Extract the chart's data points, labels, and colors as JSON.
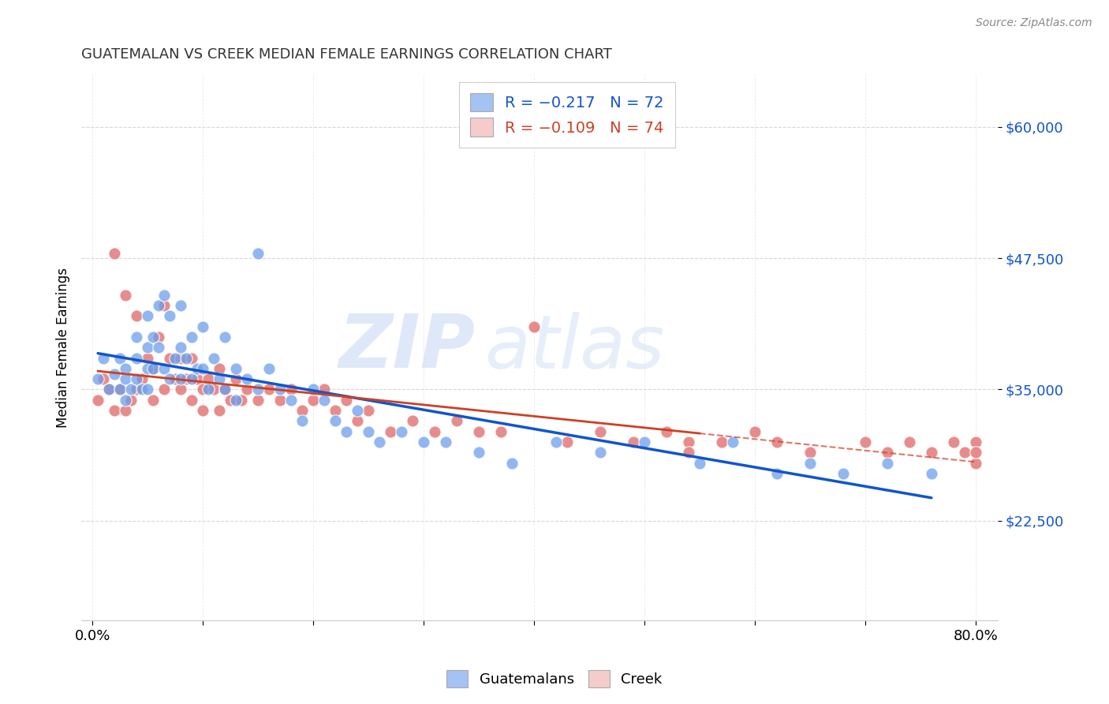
{
  "title": "GUATEMALAN VS CREEK MEDIAN FEMALE EARNINGS CORRELATION CHART",
  "source": "Source: ZipAtlas.com",
  "ylabel": "Median Female Earnings",
  "yticks": [
    22500,
    35000,
    47500,
    60000
  ],
  "ytick_labels": [
    "$22,500",
    "$35,000",
    "$47,500",
    "$60,000"
  ],
  "ylim": [
    13000,
    65000
  ],
  "xlim": [
    -0.01,
    0.82
  ],
  "blue_color": "#a4c2f4",
  "pink_color": "#f4cccc",
  "blue_marker_color": "#6d9eeb",
  "pink_marker_color": "#e06666",
  "blue_line_color": "#1155cc",
  "pink_line_color": "#cc4125",
  "guatemalans_x": [
    0.005,
    0.01,
    0.015,
    0.02,
    0.025,
    0.025,
    0.03,
    0.03,
    0.03,
    0.035,
    0.04,
    0.04,
    0.04,
    0.045,
    0.05,
    0.05,
    0.05,
    0.05,
    0.055,
    0.055,
    0.06,
    0.06,
    0.065,
    0.065,
    0.07,
    0.07,
    0.075,
    0.08,
    0.08,
    0.08,
    0.085,
    0.09,
    0.09,
    0.095,
    0.1,
    0.1,
    0.105,
    0.11,
    0.115,
    0.12,
    0.12,
    0.13,
    0.13,
    0.14,
    0.15,
    0.15,
    0.16,
    0.17,
    0.18,
    0.19,
    0.2,
    0.21,
    0.22,
    0.23,
    0.24,
    0.25,
    0.26,
    0.28,
    0.3,
    0.32,
    0.35,
    0.38,
    0.42,
    0.46,
    0.5,
    0.55,
    0.58,
    0.62,
    0.65,
    0.68,
    0.72,
    0.76
  ],
  "guatemalans_y": [
    36000,
    38000,
    35000,
    36500,
    35000,
    38000,
    37000,
    36000,
    34000,
    35000,
    40000,
    38000,
    36000,
    35000,
    42000,
    39000,
    37000,
    35000,
    40000,
    37000,
    43000,
    39000,
    44000,
    37000,
    42000,
    36000,
    38000,
    43000,
    39000,
    36000,
    38000,
    40000,
    36000,
    37000,
    41000,
    37000,
    35000,
    38000,
    36000,
    40000,
    35000,
    37000,
    34000,
    36000,
    48000,
    35000,
    37000,
    35000,
    34000,
    32000,
    35000,
    34000,
    32000,
    31000,
    33000,
    31000,
    30000,
    31000,
    30000,
    30000,
    29000,
    28000,
    30000,
    29000,
    30000,
    28000,
    30000,
    27000,
    28000,
    27000,
    28000,
    27000
  ],
  "creek_x": [
    0.005,
    0.01,
    0.015,
    0.02,
    0.02,
    0.025,
    0.03,
    0.03,
    0.035,
    0.04,
    0.04,
    0.045,
    0.05,
    0.055,
    0.055,
    0.06,
    0.065,
    0.065,
    0.07,
    0.075,
    0.08,
    0.08,
    0.085,
    0.09,
    0.09,
    0.095,
    0.1,
    0.1,
    0.105,
    0.11,
    0.115,
    0.115,
    0.12,
    0.125,
    0.13,
    0.135,
    0.14,
    0.15,
    0.16,
    0.17,
    0.18,
    0.19,
    0.2,
    0.21,
    0.22,
    0.23,
    0.24,
    0.25,
    0.27,
    0.29,
    0.31,
    0.33,
    0.35,
    0.37,
    0.4,
    0.43,
    0.46,
    0.49,
    0.52,
    0.54,
    0.54,
    0.57,
    0.6,
    0.62,
    0.65,
    0.7,
    0.72,
    0.74,
    0.76,
    0.78,
    0.79,
    0.8,
    0.8,
    0.8
  ],
  "creek_y": [
    34000,
    36000,
    35000,
    48000,
    33000,
    35000,
    44000,
    33000,
    34000,
    42000,
    35000,
    36000,
    38000,
    37000,
    34000,
    40000,
    43000,
    35000,
    38000,
    36000,
    38000,
    35000,
    36000,
    38000,
    34000,
    36000,
    35000,
    33000,
    36000,
    35000,
    37000,
    33000,
    35000,
    34000,
    36000,
    34000,
    35000,
    34000,
    35000,
    34000,
    35000,
    33000,
    34000,
    35000,
    33000,
    34000,
    32000,
    33000,
    31000,
    32000,
    31000,
    32000,
    31000,
    31000,
    41000,
    30000,
    31000,
    30000,
    31000,
    30000,
    29000,
    30000,
    31000,
    30000,
    29000,
    30000,
    29000,
    30000,
    29000,
    30000,
    29000,
    28000,
    30000,
    29000
  ]
}
